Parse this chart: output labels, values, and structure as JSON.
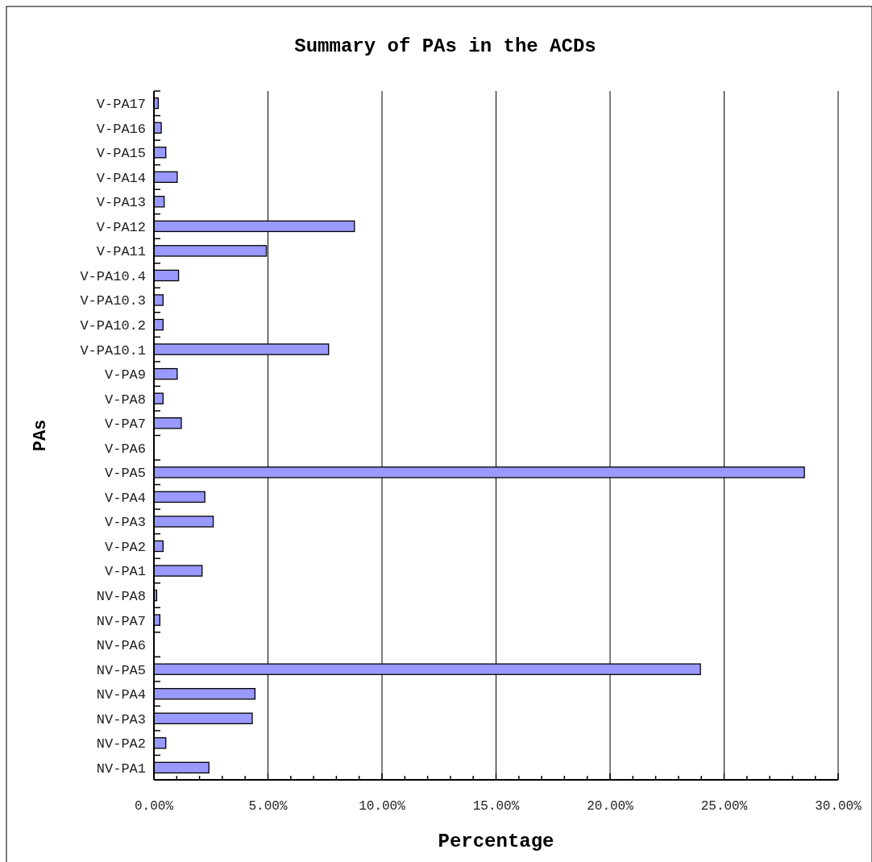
{
  "chart_data": {
    "type": "bar",
    "orientation": "horizontal",
    "title": "Summary of PAs in the ACDs",
    "xlabel": "Percentage",
    "ylabel": "PAs",
    "categories": [
      "V-PA17",
      "V-PA16",
      "V-PA15",
      "V-PA14",
      "V-PA13",
      "V-PA12",
      "V-PA11",
      "V-PA10.4",
      "V-PA10.3",
      "V-PA10.2",
      "V-PA10.1",
      "V-PA9",
      "V-PA8",
      "V-PA7",
      "V-PA6",
      "V-PA5",
      "V-PA4",
      "V-PA3",
      "V-PA2",
      "V-PA1",
      "NV-PA8",
      "NV-PA7",
      "NV-PA6",
      "NV-PA5",
      "NV-PA4",
      "NV-PA3",
      "NV-PA2",
      "NV-PA1"
    ],
    "values": [
      0.19,
      0.32,
      0.52,
      1.02,
      0.45,
      8.79,
      4.93,
      1.08,
      0.4,
      0.4,
      7.66,
      1.02,
      0.4,
      1.2,
      0,
      28.52,
      2.23,
      2.6,
      0.4,
      2.11,
      0.12,
      0.26,
      0,
      23.96,
      4.43,
      4.31,
      0.52,
      2.41
    ],
    "color": "#9999ff",
    "xlim": [
      0,
      30
    ],
    "xticks": [
      {
        "value": 0,
        "label": "0.00%"
      },
      {
        "value": 1,
        "label": null
      },
      {
        "value": 2,
        "label": null
      },
      {
        "value": 3,
        "label": null
      },
      {
        "value": 4,
        "label": null
      },
      {
        "value": 5,
        "label": "5.00%"
      },
      {
        "value": 6,
        "label": null
      },
      {
        "value": 7,
        "label": null
      },
      {
        "value": 8,
        "label": null
      },
      {
        "value": 9,
        "label": null
      },
      {
        "value": 10,
        "label": "10.00%"
      },
      {
        "value": 11,
        "label": null
      },
      {
        "value": 12,
        "label": null
      },
      {
        "value": 13,
        "label": null
      },
      {
        "value": 14,
        "label": null
      },
      {
        "value": 15,
        "label": "15.00%"
      },
      {
        "value": 16,
        "label": null
      },
      {
        "value": 17,
        "label": null
      },
      {
        "value": 18,
        "label": null
      },
      {
        "value": 19,
        "label": null
      },
      {
        "value": 20,
        "label": "20.00%"
      },
      {
        "value": 21,
        "label": null
      },
      {
        "value": 22,
        "label": null
      },
      {
        "value": 23,
        "label": null
      },
      {
        "value": 24,
        "label": null
      },
      {
        "value": 25,
        "label": "25.00%"
      },
      {
        "value": 26,
        "label": null
      },
      {
        "value": 27,
        "label": null
      },
      {
        "value": 28,
        "label": null
      },
      {
        "value": 29,
        "label": null
      },
      {
        "value": 30,
        "label": "30.00%"
      }
    ],
    "grid": "x"
  }
}
